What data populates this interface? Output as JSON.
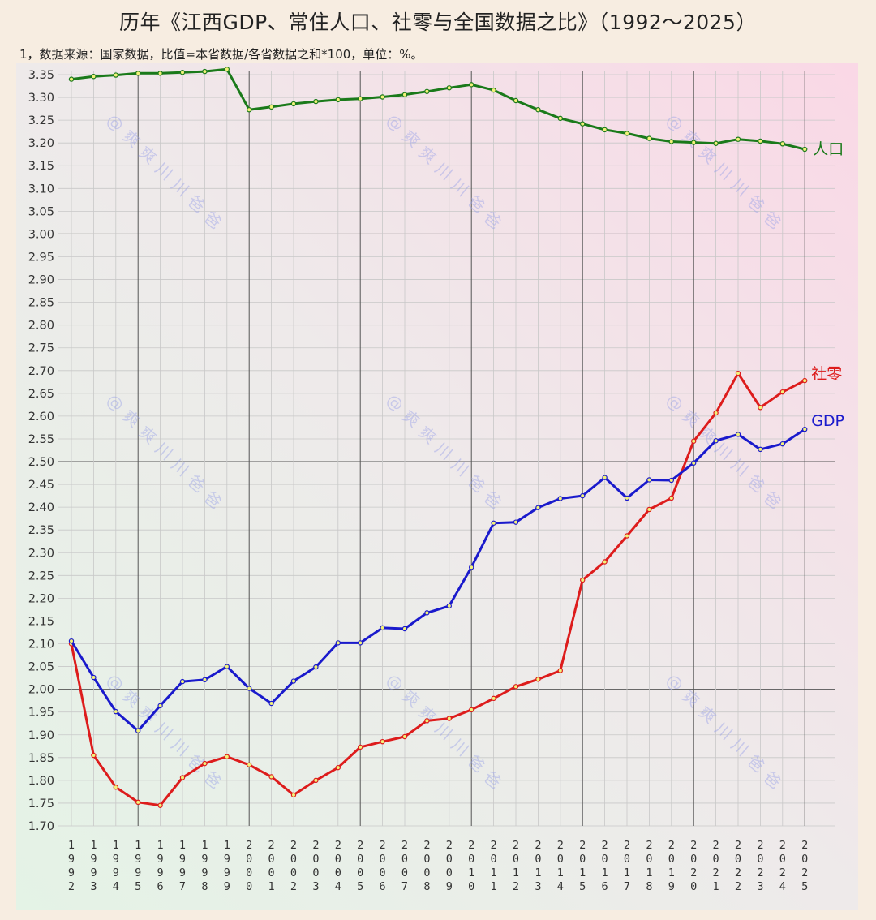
{
  "title": "历年《江西GDP、常住人口、社零与全国数据之比》（1992～2025）",
  "subtitle": "1，数据来源：国家数据，比值=本省数据/各省数据之和*100，单位：%。",
  "watermark_text": "@爽爽川川爸爸",
  "colors": {
    "background": "#f7ede1",
    "grid_major": "#555555",
    "grid_minor": "#c8c8c8",
    "population": "#1a7a1a",
    "retail": "#dd1c1c",
    "gdp": "#1a1acc",
    "marker_fill": "#f2f27a"
  },
  "chart_data": {
    "type": "line",
    "title": "历年《江西GDP、常住人口、社零与全国数据之比》（1992～2025）",
    "xlabel": "",
    "ylabel": "",
    "ylim": [
      1.7,
      3.35
    ],
    "y_ticks": [
      "3.35",
      "3.30",
      "3.25",
      "3.20",
      "3.15",
      "3.10",
      "3.05",
      "3.00",
      "2.95",
      "2.90",
      "2.85",
      "2.80",
      "2.75",
      "2.70",
      "2.65",
      "2.60",
      "2.55",
      "2.50",
      "2.45",
      "2.40",
      "2.35",
      "2.30",
      "2.25",
      "2.20",
      "2.15",
      "2.10",
      "2.05",
      "2.00",
      "1.95",
      "1.90",
      "1.85",
      "1.80",
      "1.75",
      "1.70"
    ],
    "grid": true,
    "legend": "inline labels at line ends",
    "x": [
      "1992",
      "1993",
      "1994",
      "1995",
      "1996",
      "1997",
      "1998",
      "1999",
      "2000",
      "2001",
      "2002",
      "2003",
      "2004",
      "2005",
      "2006",
      "2007",
      "2008",
      "2009",
      "2010",
      "2011",
      "2012",
      "2013",
      "2014",
      "2015",
      "2016",
      "2017",
      "2018",
      "2019",
      "2020",
      "2021",
      "2022",
      "2023",
      "2024",
      "2025"
    ],
    "series": [
      {
        "name": "人口",
        "color": "#1a7a1a",
        "values": [
          3.34,
          3.346,
          3.349,
          3.353,
          3.353,
          3.355,
          3.357,
          3.362,
          3.273,
          3.279,
          3.286,
          3.291,
          3.295,
          3.297,
          3.301,
          3.306,
          3.313,
          3.321,
          3.328,
          3.316,
          3.293,
          3.273,
          3.254,
          3.242,
          3.229,
          3.221,
          3.21,
          3.203,
          3.201,
          3.199,
          3.208,
          3.204,
          3.198,
          3.186
        ]
      },
      {
        "name": "社零",
        "color": "#dd1c1c",
        "values": [
          2.1,
          1.855,
          1.785,
          1.752,
          1.745,
          1.806,
          1.837,
          1.852,
          1.834,
          1.808,
          1.768,
          1.8,
          1.828,
          1.873,
          1.885,
          1.896,
          1.931,
          1.936,
          1.955,
          1.98,
          2.006,
          2.022,
          2.041,
          2.24,
          2.28,
          2.337,
          2.395,
          2.42,
          2.545,
          2.607,
          2.694,
          2.619,
          2.653,
          2.678
        ]
      },
      {
        "name": "GDP",
        "color": "#1a1acc",
        "values": [
          2.106,
          2.026,
          1.951,
          1.909,
          1.964,
          2.017,
          2.021,
          2.05,
          2.002,
          1.969,
          2.018,
          2.049,
          2.102,
          2.102,
          2.135,
          2.133,
          2.168,
          2.183,
          2.268,
          2.365,
          2.367,
          2.399,
          2.419,
          2.425,
          2.465,
          2.42,
          2.46,
          2.459,
          2.497,
          2.546,
          2.56,
          2.527,
          2.539,
          2.571
        ]
      }
    ]
  }
}
